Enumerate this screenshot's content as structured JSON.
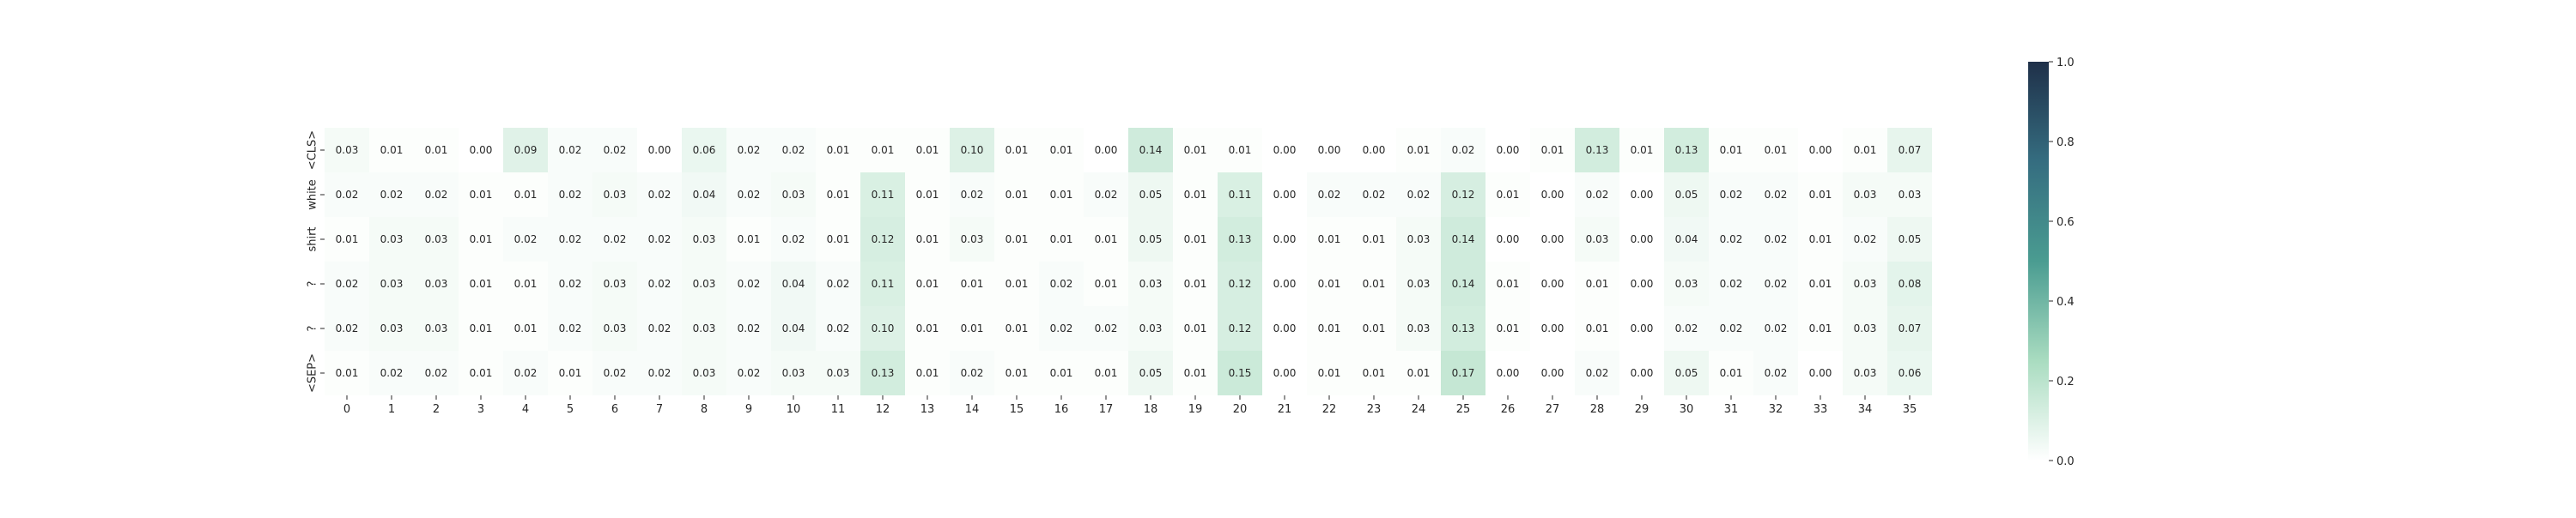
{
  "chart_data": {
    "type": "heatmap",
    "title": "",
    "xlabel": "",
    "ylabel": "",
    "x_tick_labels": [
      "0",
      "1",
      "2",
      "3",
      "4",
      "5",
      "6",
      "7",
      "8",
      "9",
      "10",
      "11",
      "12",
      "13",
      "14",
      "15",
      "16",
      "17",
      "18",
      "19",
      "20",
      "21",
      "22",
      "23",
      "24",
      "25",
      "26",
      "27",
      "28",
      "29",
      "30",
      "31",
      "32",
      "33",
      "34",
      "35"
    ],
    "y_tick_labels": [
      "<CLS>",
      "white",
      "shirt",
      "?",
      "?",
      "<SEP>"
    ],
    "values": [
      [
        0.03,
        0.01,
        0.01,
        0.0,
        0.09,
        0.02,
        0.02,
        0.0,
        0.06,
        0.02,
        0.02,
        0.01,
        0.01,
        0.01,
        0.1,
        0.01,
        0.01,
        0.0,
        0.14,
        0.01,
        0.01,
        0.0,
        0.0,
        0.0,
        0.01,
        0.02,
        0.0,
        0.01,
        0.13,
        0.01,
        0.13,
        0.01,
        0.01,
        0.0,
        0.01,
        0.07
      ],
      [
        0.02,
        0.02,
        0.02,
        0.01,
        0.01,
        0.02,
        0.03,
        0.02,
        0.04,
        0.02,
        0.03,
        0.01,
        0.11,
        0.01,
        0.02,
        0.01,
        0.01,
        0.02,
        0.05,
        0.01,
        0.11,
        0.0,
        0.02,
        0.02,
        0.02,
        0.12,
        0.01,
        0.0,
        0.02,
        0.0,
        0.05,
        0.02,
        0.02,
        0.01,
        0.03,
        0.03
      ],
      [
        0.01,
        0.03,
        0.03,
        0.01,
        0.02,
        0.02,
        0.02,
        0.02,
        0.03,
        0.01,
        0.02,
        0.01,
        0.12,
        0.01,
        0.03,
        0.01,
        0.01,
        0.01,
        0.05,
        0.01,
        0.13,
        0.0,
        0.01,
        0.01,
        0.03,
        0.14,
        0.0,
        0.0,
        0.03,
        0.0,
        0.04,
        0.02,
        0.02,
        0.01,
        0.02,
        0.05
      ],
      [
        0.02,
        0.03,
        0.03,
        0.01,
        0.01,
        0.02,
        0.03,
        0.02,
        0.03,
        0.02,
        0.04,
        0.02,
        0.11,
        0.01,
        0.01,
        0.01,
        0.02,
        0.01,
        0.03,
        0.01,
        0.12,
        0.0,
        0.01,
        0.01,
        0.03,
        0.14,
        0.01,
        0.0,
        0.01,
        0.0,
        0.03,
        0.02,
        0.02,
        0.01,
        0.03,
        0.08
      ],
      [
        0.02,
        0.03,
        0.03,
        0.01,
        0.01,
        0.02,
        0.03,
        0.02,
        0.03,
        0.02,
        0.04,
        0.02,
        0.1,
        0.01,
        0.01,
        0.01,
        0.02,
        0.02,
        0.03,
        0.01,
        0.12,
        0.0,
        0.01,
        0.01,
        0.03,
        0.13,
        0.01,
        0.0,
        0.01,
        0.0,
        0.02,
        0.02,
        0.02,
        0.01,
        0.03,
        0.07
      ],
      [
        0.01,
        0.02,
        0.02,
        0.01,
        0.02,
        0.01,
        0.02,
        0.02,
        0.03,
        0.02,
        0.03,
        0.03,
        0.13,
        0.01,
        0.02,
        0.01,
        0.01,
        0.01,
        0.05,
        0.01,
        0.15,
        0.0,
        0.01,
        0.01,
        0.01,
        0.17,
        0.0,
        0.0,
        0.02,
        0.0,
        0.05,
        0.01,
        0.02,
        0.0,
        0.03,
        0.06
      ]
    ],
    "value_format": "2 decimals",
    "color_range": [
      0.0,
      1.0
    ],
    "colormap": [
      "#ffffff",
      "#a9dcc0",
      "#4a9c91",
      "#356d80",
      "#1f3049"
    ],
    "colorbar_ticks": [
      "0.0",
      "0.2",
      "0.4",
      "0.6",
      "0.8",
      "1.0"
    ],
    "colorbar_tick_values": [
      0.0,
      0.2,
      0.4,
      0.6,
      0.8,
      1.0
    ],
    "annotation_color": "#262626",
    "axis_color": "#262626"
  }
}
